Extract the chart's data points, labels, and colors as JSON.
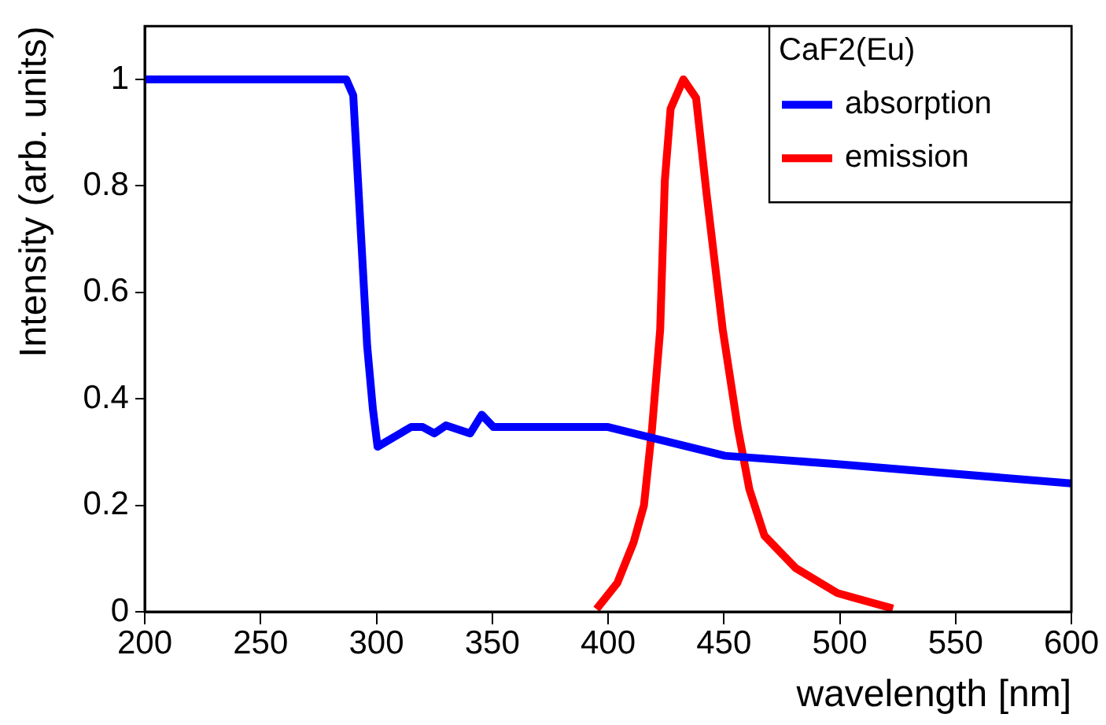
{
  "chart_data": {
    "type": "line",
    "xlabel": "wavelength [nm]",
    "ylabel": "Intensity (arb. units)",
    "legend_title": "CaF2(Eu)",
    "xlim": [
      200,
      600
    ],
    "xticks": [
      200,
      250,
      300,
      350,
      400,
      450,
      500,
      550,
      600
    ],
    "ylim": [
      0,
      1.1
    ],
    "yticks": [
      0,
      0.2,
      0.4,
      0.6,
      0.8,
      1
    ],
    "grid": false,
    "legend": "top right",
    "marker": "none",
    "line_style": "solid",
    "series": [
      {
        "name": "absorption",
        "color": "#0000ff",
        "x": [
          200,
          287,
          290,
          296,
          298.5,
          300.5,
          315,
          320,
          325,
          330,
          340.5,
          345.5,
          350.5,
          400,
          450.5,
          500,
          600
        ],
        "values": [
          1,
          1,
          0.97,
          0.5,
          0.38,
          0.31,
          0.347,
          0.347,
          0.335,
          0.35,
          0.335,
          0.37,
          0.347,
          0.347,
          0.293,
          0.277,
          0.241
        ]
      },
      {
        "name": "emission",
        "color": "#ff0000",
        "x": [
          395,
          404,
          411,
          415.5,
          419,
          422.5,
          424.5,
          427,
          432.5,
          438,
          442.5,
          449.5,
          456,
          461,
          467.5,
          481,
          499,
          523
        ],
        "values": [
          0.005,
          0.054,
          0.13,
          0.2,
          0.345,
          0.53,
          0.81,
          0.945,
          1,
          0.965,
          0.786,
          0.53,
          0.345,
          0.23,
          0.143,
          0.082,
          0.035,
          0.006
        ]
      }
    ]
  }
}
